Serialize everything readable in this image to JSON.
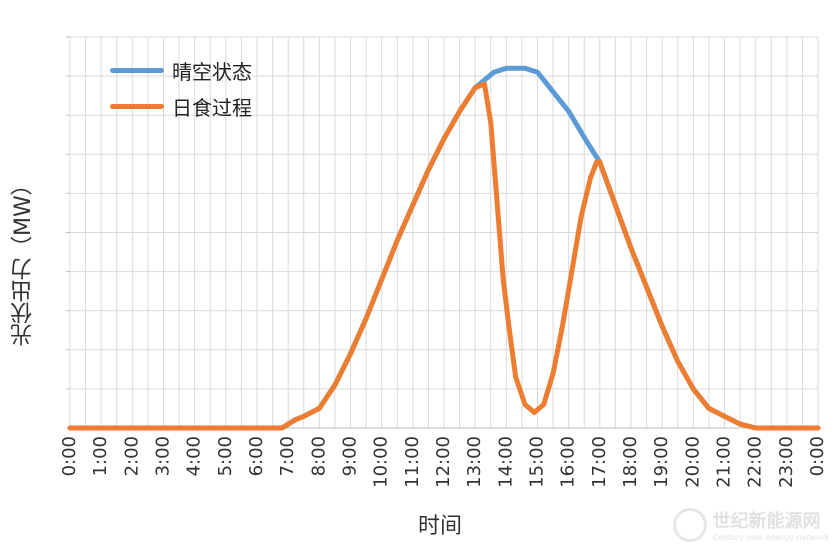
{
  "chart_data": {
    "type": "line",
    "title": "",
    "xlabel": "时间",
    "ylabel": "光伏出力（MW）",
    "x_tick_labels": [
      "0:00",
      "1:00",
      "2:00",
      "3:00",
      "4:00",
      "5:00",
      "6:00",
      "7:00",
      "8:00",
      "9:00",
      "10:00",
      "11:00",
      "12:00",
      "13:00",
      "14:00",
      "15:00",
      "16:00",
      "17:00",
      "18:00",
      "19:00",
      "20:00",
      "21:00",
      "22:00",
      "23:00",
      "0:00"
    ],
    "x_range_hours": [
      0,
      24
    ],
    "y_range": [
      0,
      1
    ],
    "y_tick_labels_shown": false,
    "grid": true,
    "legend_position": "top-left",
    "series": [
      {
        "name": "晴空状态",
        "color": "#5b9bd5",
        "x_hours": [
          0,
          6.8,
          7.2,
          7.5,
          8,
          8.5,
          9,
          9.5,
          10,
          10.5,
          11,
          11.5,
          12,
          12.5,
          13,
          13.3,
          13.6,
          14,
          14.3,
          14.6,
          15,
          15.3,
          15.6,
          16,
          16.3,
          16.6,
          17,
          17.5,
          18,
          18.5,
          19,
          19.5,
          20,
          20.5,
          21,
          21.5,
          22,
          24
        ],
        "values": [
          0,
          0,
          0.02,
          0.03,
          0.05,
          0.11,
          0.19,
          0.28,
          0.38,
          0.48,
          0.57,
          0.66,
          0.74,
          0.81,
          0.87,
          0.89,
          0.91,
          0.92,
          0.92,
          0.92,
          0.91,
          0.88,
          0.85,
          0.81,
          0.77,
          0.73,
          0.68,
          0.57,
          0.46,
          0.36,
          0.26,
          0.17,
          0.1,
          0.05,
          0.03,
          0.01,
          0,
          0
        ]
      },
      {
        "name": "日食过程",
        "color": "#ed7d31",
        "x_hours": [
          0,
          6.8,
          7.2,
          7.5,
          8,
          8.5,
          9,
          9.5,
          10,
          10.5,
          11,
          11.5,
          12,
          12.5,
          13,
          13.3,
          13.5,
          13.7,
          13.9,
          14.1,
          14.3,
          14.6,
          14.9,
          15.2,
          15.5,
          15.8,
          16.1,
          16.4,
          16.7,
          16.9,
          17,
          17.5,
          18,
          18.5,
          19,
          19.5,
          20,
          20.5,
          21,
          21.5,
          22,
          24
        ],
        "values": [
          0,
          0,
          0.02,
          0.03,
          0.05,
          0.11,
          0.19,
          0.28,
          0.38,
          0.48,
          0.57,
          0.66,
          0.74,
          0.81,
          0.87,
          0.88,
          0.78,
          0.58,
          0.38,
          0.25,
          0.13,
          0.06,
          0.04,
          0.06,
          0.14,
          0.26,
          0.4,
          0.54,
          0.64,
          0.68,
          0.68,
          0.57,
          0.46,
          0.36,
          0.26,
          0.17,
          0.1,
          0.05,
          0.03,
          0.01,
          0,
          0
        ]
      }
    ]
  },
  "legend": {
    "item1": "晴空状态",
    "item2": "日食过程"
  },
  "watermark": {
    "main": "世纪新能源网",
    "sub": "Century new energy network"
  }
}
